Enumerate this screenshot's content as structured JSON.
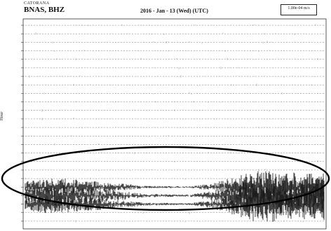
{
  "header": {
    "network": "CATORANA",
    "station": "BNAS, BHZ",
    "date_title": "2016 - Jan - 13 (Wed) (UTC)",
    "scale_label": "1.00e-04 m/s",
    "ylabel": "Hour"
  },
  "colors": {
    "trace": "#1a1a1a",
    "background": "#ffffff",
    "ellipse": "#000000"
  },
  "chart_data": {
    "type": "line",
    "title": "2016 - Jan - 13 (Wed) (UTC)",
    "ylabel": "Hour",
    "xlabel": "",
    "rows": 24,
    "tick_labels_visible": false,
    "event_rows": [
      19,
      20,
      21
    ],
    "event_amplitude_profile": [
      {
        "x": 0.0,
        "amp": 0.35
      },
      {
        "x": 0.1,
        "amp": 0.55
      },
      {
        "x": 0.2,
        "amp": 0.4
      },
      {
        "x": 0.3,
        "amp": 0.25
      },
      {
        "x": 0.4,
        "amp": 0.08
      },
      {
        "x": 0.55,
        "amp": 0.05
      },
      {
        "x": 0.62,
        "amp": 0.2
      },
      {
        "x": 0.7,
        "amp": 0.6
      },
      {
        "x": 0.78,
        "amp": 1.0
      },
      {
        "x": 0.88,
        "amp": 0.9
      },
      {
        "x": 1.0,
        "amp": 0.85
      }
    ],
    "annotation": "ellipse around hours 19-22"
  }
}
